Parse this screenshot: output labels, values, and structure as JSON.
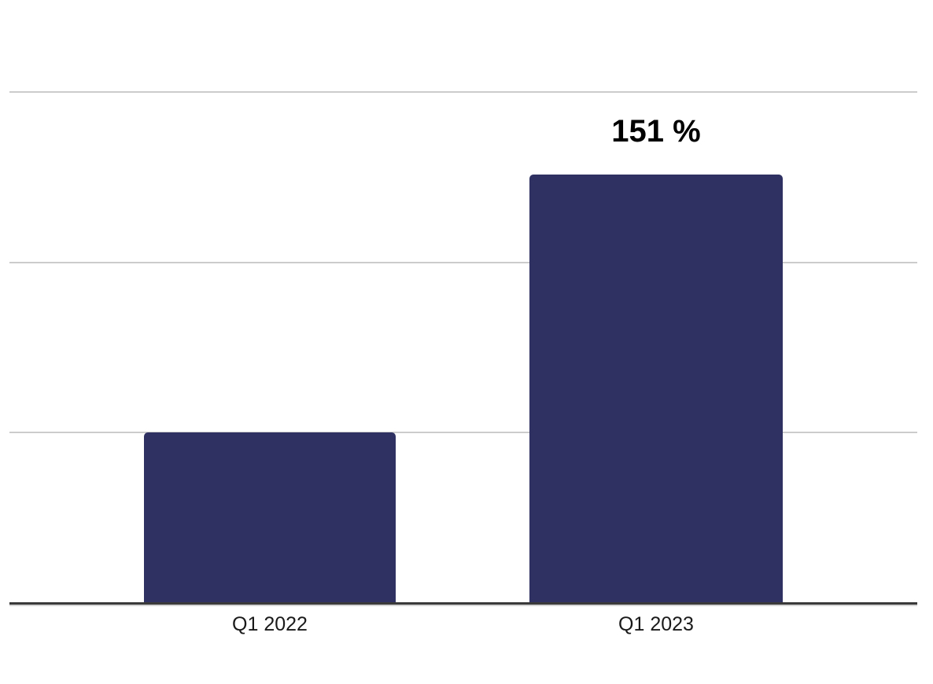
{
  "chart_data": {
    "type": "bar",
    "categories": [
      "Q1 2022",
      "Q1 2023"
    ],
    "values": [
      60,
      151
    ],
    "data_labels": [
      "",
      "151 %"
    ],
    "title": "",
    "xlabel": "",
    "ylabel": "",
    "ylim": [
      0,
      181.5
    ],
    "gridline_values": [
      60,
      120,
      180
    ],
    "grid": true,
    "legend": false,
    "bar_color": "#2e3162",
    "gridline_color": "#cccccc",
    "axis_line_color": "#3a3a3a",
    "axis_shadow_color": "#d4d4d4",
    "category_label_color": "#1a1a1a",
    "data_label_color": "#000000",
    "background_color": "#ffffff"
  }
}
